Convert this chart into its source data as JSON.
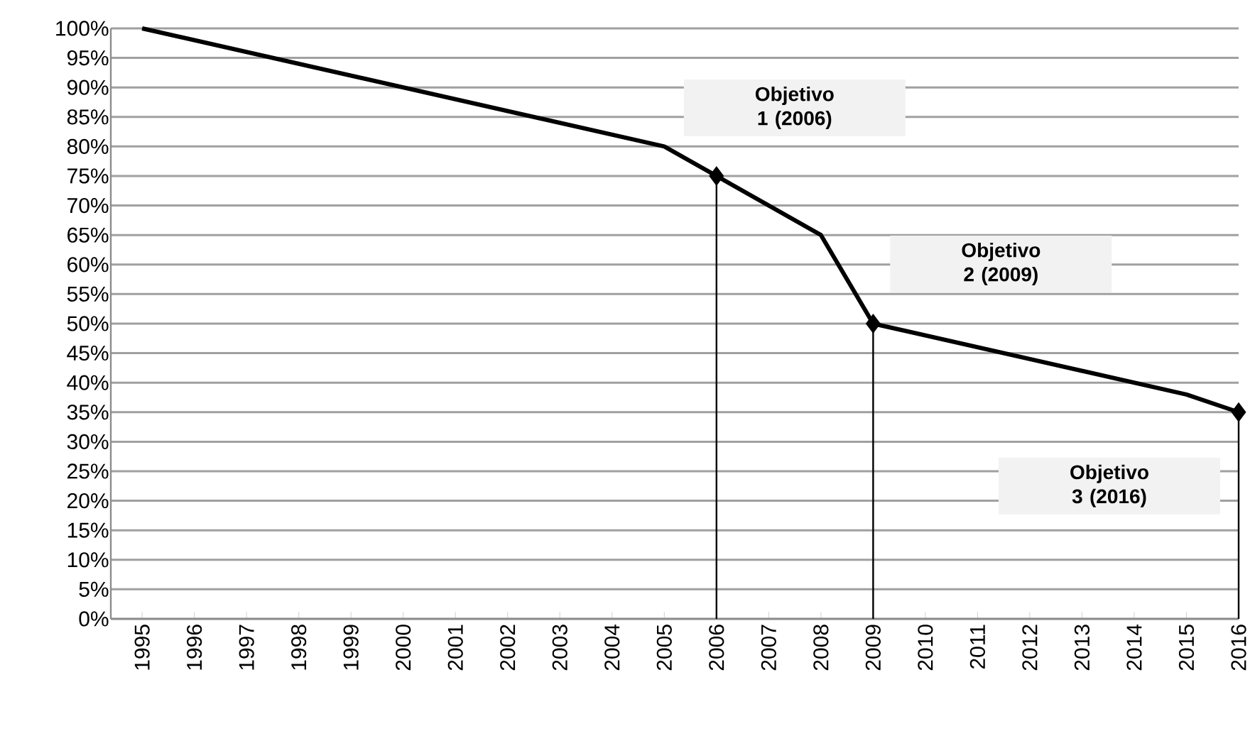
{
  "chart_data": {
    "type": "line",
    "xlim": [
      1994.4,
      2016
    ],
    "xticks": [
      1995,
      1996,
      1997,
      1998,
      1999,
      2000,
      2001,
      2002,
      2003,
      2004,
      2005,
      2006,
      2007,
      2008,
      2009,
      2010,
      2011,
      2012,
      2013,
      2014,
      2015,
      2016
    ],
    "ylim": [
      0,
      100
    ],
    "yticks": [
      {
        "value": 0,
        "label": "0%"
      },
      {
        "value": 5,
        "label": "5%"
      },
      {
        "value": 10,
        "label": "10%"
      },
      {
        "value": 15,
        "label": "15%"
      },
      {
        "value": 20,
        "label": "20%"
      },
      {
        "value": 25,
        "label": "25%"
      },
      {
        "value": 30,
        "label": "30%"
      },
      {
        "value": 35,
        "label": "35%"
      },
      {
        "value": 40,
        "label": "40%"
      },
      {
        "value": 45,
        "label": "45%"
      },
      {
        "value": 50,
        "label": "50%"
      },
      {
        "value": 55,
        "label": "55%"
      },
      {
        "value": 60,
        "label": "60%"
      },
      {
        "value": 65,
        "label": "65%"
      },
      {
        "value": 70,
        "label": "70%"
      },
      {
        "value": 75,
        "label": "75%"
      },
      {
        "value": 80,
        "label": "80%"
      },
      {
        "value": 85,
        "label": "85%"
      },
      {
        "value": 90,
        "label": "90%"
      },
      {
        "value": 95,
        "label": "95%"
      },
      {
        "value": 100,
        "label": "100%"
      }
    ],
    "grid": "y",
    "series": [
      {
        "color": "#000000",
        "marker": "none",
        "x": [
          1995,
          2005,
          2006,
          2008,
          2009,
          2015,
          2016
        ],
        "values": [
          100,
          80,
          75,
          65,
          50,
          38,
          35
        ]
      },
      {
        "type": "lollipop",
        "color": "#000000",
        "marker": "diamond",
        "x": [
          2006,
          2009,
          2016
        ],
        "values": [
          75,
          50,
          35
        ]
      }
    ],
    "annotations": [
      "Objetivo 1 (2006)",
      "Objetivo 2 (2009)",
      "Objetivo 3 (2016)"
    ]
  }
}
